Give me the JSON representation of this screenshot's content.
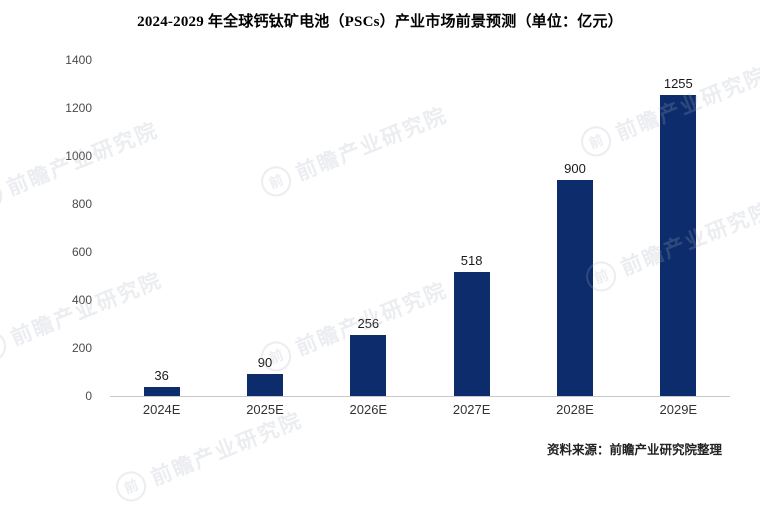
{
  "title": "2024-2029 年全球钙钛矿电池（PSCs）产业市场前景预测（单位：亿元）",
  "source_note": "资料来源：前瞻产业研究院整理",
  "watermark": {
    "logo_glyph": "前",
    "text": "前瞻产业研究院"
  },
  "chart_data": {
    "type": "bar",
    "title": "2024-2029 年全球钙钛矿电池（PSCs）产业市场前景预测（单位：亿元）",
    "categories": [
      "2024E",
      "2025E",
      "2026E",
      "2027E",
      "2028E",
      "2029E"
    ],
    "values": [
      36,
      90,
      256,
      518,
      900,
      1255
    ],
    "xlabel": "",
    "ylabel": "",
    "ylim": [
      0,
      1400
    ],
    "ytick_step": 200,
    "grid": false,
    "legend": false,
    "bar_color": "#0d2c6b"
  }
}
